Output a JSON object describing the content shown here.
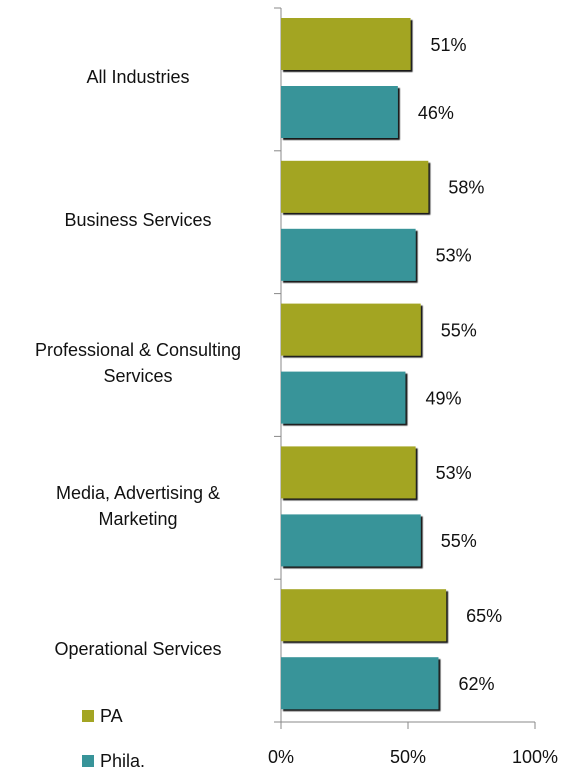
{
  "chart_data": {
    "type": "bar",
    "orientation": "horizontal",
    "categories": [
      "All Industries",
      "Business Services",
      "Professional & Consulting\nServices",
      "Media, Advertising &\nMarketing",
      "Operational Services"
    ],
    "series": [
      {
        "name": "PA",
        "color": "#a3a523",
        "values": [
          51,
          58,
          55,
          53,
          65
        ],
        "value_labels": [
          "51%",
          "58%",
          "55%",
          "53%",
          "65%"
        ]
      },
      {
        "name": "Phila.",
        "color": "#389499",
        "values": [
          46,
          53,
          49,
          55,
          62
        ],
        "value_labels": [
          "46%",
          "53%",
          "49%",
          "55%",
          "62%"
        ]
      }
    ],
    "xlim": [
      0,
      100
    ],
    "xticks": [
      {
        "value": 0,
        "label": "0%"
      },
      {
        "value": 50,
        "label": "50%"
      },
      {
        "value": 100,
        "label": "100%"
      }
    ],
    "legend": "bottom-left"
  }
}
